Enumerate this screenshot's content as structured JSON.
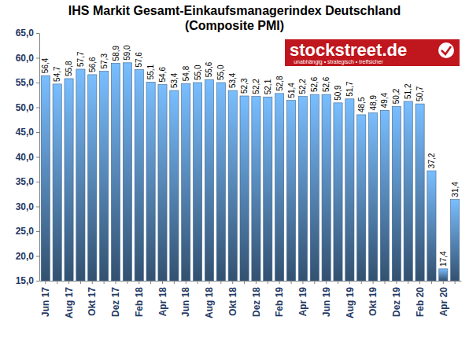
{
  "chart_data": {
    "type": "bar",
    "title": "IHS Markit Gesamt-Einkaufsmanagerindex Deutschland",
    "subtitle": "(Composite PMI)",
    "annotations": [
      "stockstreet.de",
      "unabhängig • strategisch • treffsicher"
    ],
    "categories": [
      "Jun 17",
      null,
      "Aug 17",
      null,
      "Okt 17",
      null,
      "Dez 17",
      null,
      "Feb 18",
      null,
      "Apr 18",
      null,
      "Jun 18",
      null,
      "Aug 18",
      null,
      "Okt 18",
      null,
      "Dez 18",
      null,
      "Feb 19",
      null,
      "Apr 19",
      null,
      "Jun 19",
      null,
      "Aug 19",
      null,
      "Okt 19",
      null,
      "Dez 19",
      null,
      "Feb 20",
      null,
      "Apr 20",
      null
    ],
    "values": [
      56.4,
      54.7,
      55.8,
      57.7,
      56.6,
      57.3,
      58.9,
      59.0,
      57.6,
      55.1,
      54.6,
      53.4,
      54.8,
      55.0,
      55.6,
      55.0,
      53.4,
      52.3,
      52.2,
      52.1,
      52.8,
      51.4,
      52.2,
      52.6,
      52.6,
      50.9,
      51.7,
      48.5,
      48.9,
      49.4,
      50.2,
      51.2,
      50.7,
      37.2,
      17.4,
      31.4
    ],
    "value_labels": [
      "56,4",
      "54,7",
      "55,8",
      "57,7",
      "56,6",
      "57,3",
      "58,9",
      "59,0",
      "57,6",
      "55,1",
      "54,6",
      "53,4",
      "54,8",
      "55,0",
      "55,6",
      "55,0",
      "53,4",
      "52,3",
      "52,2",
      "52,1",
      "52,8",
      "51,4",
      "52,2",
      "52,6",
      "52,6",
      "50,9",
      "51,7",
      "48,5",
      "48,9",
      "49,4",
      "50,2",
      "51,2",
      "50,7",
      "37,2",
      "17,4",
      "31,4"
    ],
    "color": "#5b8fc7",
    "ylim": [
      15,
      65
    ],
    "yticks": [
      {
        "value": 15,
        "label": "15,0"
      },
      {
        "value": 20,
        "label": "20,0"
      },
      {
        "value": 25,
        "label": "25,0"
      },
      {
        "value": 30,
        "label": "30,0"
      },
      {
        "value": 35,
        "label": "35,0"
      },
      {
        "value": 40,
        "label": "40,0"
      },
      {
        "value": 45,
        "label": "45,0"
      },
      {
        "value": 50,
        "label": "50,0"
      },
      {
        "value": 55,
        "label": "55,0"
      },
      {
        "value": 60,
        "label": "60,0"
      },
      {
        "value": 65,
        "label": "65,0"
      }
    ],
    "grid": false,
    "data_labels": true
  }
}
